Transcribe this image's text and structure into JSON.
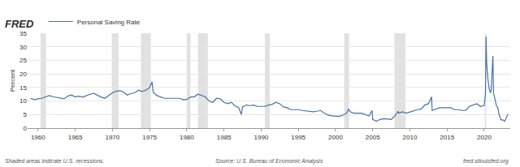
{
  "chart_data": {
    "type": "line",
    "title": "FRED",
    "y_label": "Percent",
    "notes": [
      "Shaded areas indicate U.S. recessions.",
      "Source: U.S. Bureau of Economic Analysis",
      "fred.stlouisfed.org"
    ],
    "legend": "top left",
    "grid": true,
    "xlim": [
      1958.6,
      2023.5
    ],
    "xticks": [
      1960,
      1965,
      1970,
      1975,
      1980,
      1985,
      1990,
      1995,
      2000,
      2005,
      2010,
      2015,
      2020
    ],
    "ylim": [
      0,
      35
    ],
    "yticks": [
      0,
      5,
      10,
      15,
      20,
      25,
      30,
      35
    ],
    "recessions": [
      [
        1960.33,
        1961.08
      ],
      [
        1969.92,
        1970.83
      ],
      [
        1973.83,
        1975.17
      ],
      [
        1980.0,
        1980.5
      ],
      [
        1981.5,
        1982.83
      ],
      [
        1990.5,
        1991.17
      ],
      [
        2001.17,
        2001.83
      ],
      [
        2007.92,
        2009.42
      ],
      [
        2020.08,
        2020.25
      ]
    ],
    "x": [
      1959,
      1959.5,
      1960,
      1960.5,
      1961,
      1961.5,
      1962,
      1962.5,
      1963,
      1963.5,
      1964,
      1964.5,
      1965,
      1965.5,
      1966,
      1966.5,
      1967,
      1967.5,
      1968,
      1968.5,
      1969,
      1969.5,
      1970,
      1970.5,
      1971,
      1971.5,
      1972,
      1972.5,
      1973,
      1973.5,
      1974,
      1974.5,
      1975,
      1975.33,
      1975.5,
      1976,
      1976.5,
      1977,
      1977.5,
      1978,
      1978.5,
      1979,
      1979.5,
      1980,
      1980.5,
      1981,
      1981.5,
      1982,
      1982.5,
      1983,
      1983.5,
      1984,
      1984.5,
      1985,
      1985.5,
      1986,
      1986.5,
      1987,
      1987.33,
      1987.5,
      1988,
      1988.5,
      1989,
      1989.5,
      1990,
      1990.5,
      1991,
      1991.5,
      1992,
      1992.5,
      1993,
      1993.5,
      1994,
      1994.5,
      1995,
      1995.5,
      1996,
      1996.5,
      1997,
      1997.5,
      1998,
      1998.5,
      1999,
      1999.5,
      2000,
      2000.5,
      2001,
      2001.5,
      2001.75,
      2002,
      2002.5,
      2003,
      2003.5,
      2004,
      2004.5,
      2004.92,
      2005,
      2005.5,
      2006,
      2006.5,
      2007,
      2007.5,
      2008,
      2008.42,
      2008.5,
      2009,
      2009.5,
      2010,
      2010.5,
      2011,
      2011.5,
      2012,
      2012.5,
      2012.92,
      2013,
      2013.5,
      2014,
      2014.5,
      2015,
      2015.5,
      2016,
      2016.5,
      2017,
      2017.5,
      2018,
      2018.5,
      2019,
      2019.5,
      2020,
      2020.17,
      2020.25,
      2020.33,
      2020.42,
      2020.5,
      2020.67,
      2020.83,
      2020.92,
      2021,
      2021.17,
      2021.25,
      2021.42,
      2021.5,
      2021.67,
      2021.83,
      2022,
      2022.25,
      2022.5,
      2022.75,
      2022.92,
      2023,
      2023.17,
      2023.25
    ],
    "series": [
      {
        "name": "Personal Saving Rate",
        "color": "#4572a7",
        "line_style": "solid",
        "values": [
          11.0,
          10.5,
          10.8,
          11.0,
          11.5,
          12.0,
          11.6,
          11.4,
          11.0,
          10.8,
          11.8,
          12.2,
          11.5,
          11.8,
          11.4,
          12.0,
          12.5,
          12.8,
          12.0,
          11.4,
          11.0,
          12.0,
          13.0,
          13.6,
          13.8,
          13.3,
          12.2,
          12.8,
          13.0,
          14.0,
          13.5,
          14.0,
          15.0,
          17.0,
          13.2,
          12.0,
          11.5,
          11.0,
          11.0,
          11.0,
          11.2,
          11.0,
          10.5,
          10.5,
          11.5,
          11.5,
          12.5,
          12.0,
          11.5,
          10.0,
          9.5,
          11.0,
          10.8,
          9.5,
          9.0,
          9.5,
          8.2,
          7.5,
          5.0,
          7.8,
          8.5,
          8.3,
          8.5,
          8.0,
          8.0,
          8.0,
          8.5,
          8.8,
          9.5,
          9.0,
          7.8,
          7.5,
          6.8,
          6.8,
          6.8,
          6.5,
          6.3,
          6.2,
          6.0,
          6.2,
          6.5,
          5.5,
          4.8,
          4.5,
          4.3,
          4.3,
          4.8,
          5.5,
          7.0,
          6.0,
          5.5,
          5.5,
          5.5,
          5.0,
          4.5,
          6.5,
          3.2,
          2.5,
          3.2,
          3.5,
          3.3,
          3.2,
          4.5,
          6.2,
          5.5,
          6.0,
          5.5,
          6.0,
          6.5,
          6.8,
          7.0,
          8.5,
          9.0,
          11.5,
          6.5,
          7.0,
          7.5,
          7.5,
          7.5,
          7.5,
          6.8,
          6.8,
          6.5,
          6.5,
          8.0,
          8.5,
          9.0,
          8.0,
          8.3,
          12.8,
          33.8,
          24.0,
          19.0,
          18.0,
          14.5,
          13.0,
          13.5,
          19.5,
          26.6,
          13.0,
          10.5,
          10.5,
          8.0,
          7.5,
          5.0,
          3.0,
          3.0,
          2.5,
          3.5,
          4.5,
          5.0,
          5.0
        ]
      }
    ]
  }
}
